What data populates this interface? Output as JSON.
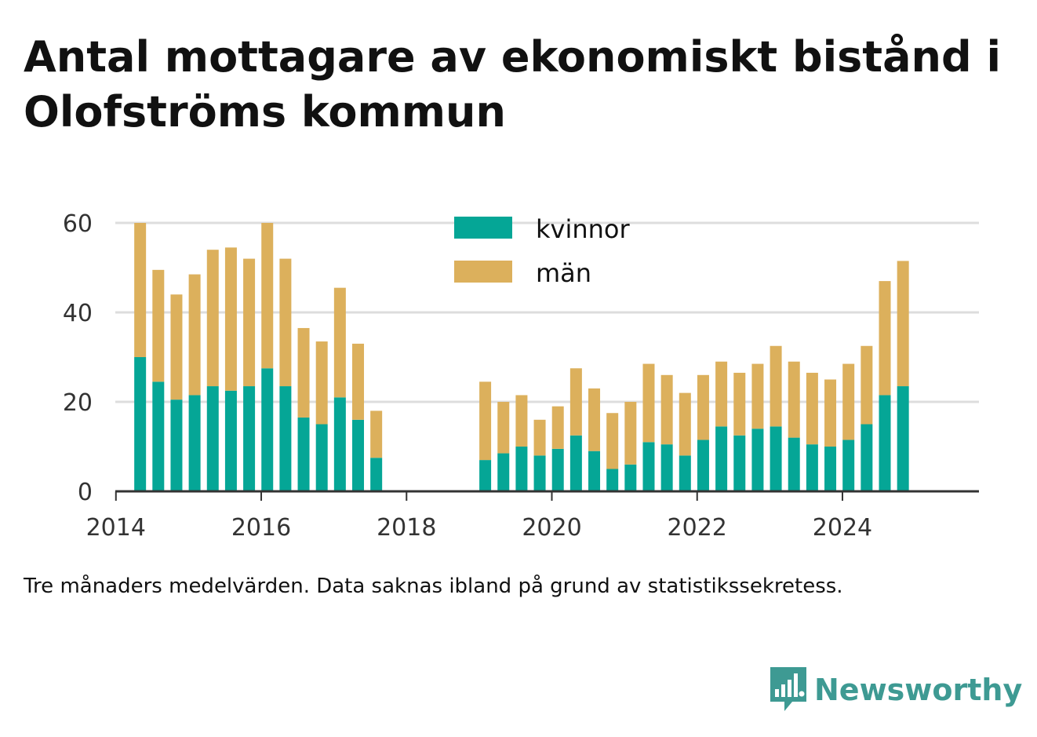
{
  "title": "Antal mottagare av ekonomiskt bistånd i Olofströms kommun",
  "footnote": "Tre månaders medelvärden. Data saknas ibland på grund av statistikssekretess.",
  "brand": {
    "name": "Newsworthy",
    "icon": "newsworthy-logo-icon"
  },
  "colors": {
    "kvinnor": "#05a696",
    "man": "#dcb05c",
    "grid": "#dddddd",
    "axis": "#333333"
  },
  "chart_data": {
    "type": "bar",
    "stacked": true,
    "title": "Antal mottagare av ekonomiskt bistånd i Olofströms kommun",
    "xlabel": "",
    "ylabel": "",
    "ylim": [
      0,
      60
    ],
    "yticks": [
      0,
      20,
      40,
      60
    ],
    "xticks": [
      "2014",
      "2016",
      "2018",
      "2020",
      "2022",
      "2024"
    ],
    "grid": true,
    "legend_position": "top-center",
    "x": [
      "2014-05",
      "2014-08",
      "2014-11",
      "2015-02",
      "2015-05",
      "2015-08",
      "2015-11",
      "2016-02",
      "2016-05",
      "2016-08",
      "2016-11",
      "2017-02",
      "2017-05",
      "2017-08",
      "2019-02",
      "2019-05",
      "2019-08",
      "2019-11",
      "2020-02",
      "2020-05",
      "2020-08",
      "2020-11",
      "2021-02",
      "2021-05",
      "2021-08",
      "2021-11",
      "2022-02",
      "2022-05",
      "2022-08",
      "2022-11",
      "2023-02",
      "2023-05",
      "2023-08",
      "2023-11",
      "2024-02",
      "2024-05",
      "2024-08",
      "2024-11"
    ],
    "series": [
      {
        "name": "kvinnor",
        "values": [
          30,
          24.5,
          20.5,
          21.5,
          23.5,
          22.5,
          23.5,
          27.5,
          23.5,
          16.5,
          15,
          21,
          16,
          7.5,
          7,
          8.5,
          10,
          8,
          9.5,
          12.5,
          9,
          5,
          6,
          11,
          10.5,
          8,
          11.5,
          14.5,
          12.5,
          14,
          14.5,
          12,
          10.5,
          10,
          11.5,
          15,
          21.5,
          23.5
        ]
      },
      {
        "name": "män",
        "values": [
          30,
          25,
          23.5,
          27,
          30.5,
          32,
          28.5,
          32.5,
          28.5,
          20,
          18.5,
          24.5,
          17,
          10.5,
          17.5,
          11.5,
          11.5,
          8,
          9.5,
          15,
          14,
          12.5,
          14,
          17.5,
          15.5,
          14,
          14.5,
          14.5,
          14,
          14.5,
          18,
          17,
          16,
          15,
          17,
          17.5,
          25.5,
          28
        ]
      }
    ]
  }
}
